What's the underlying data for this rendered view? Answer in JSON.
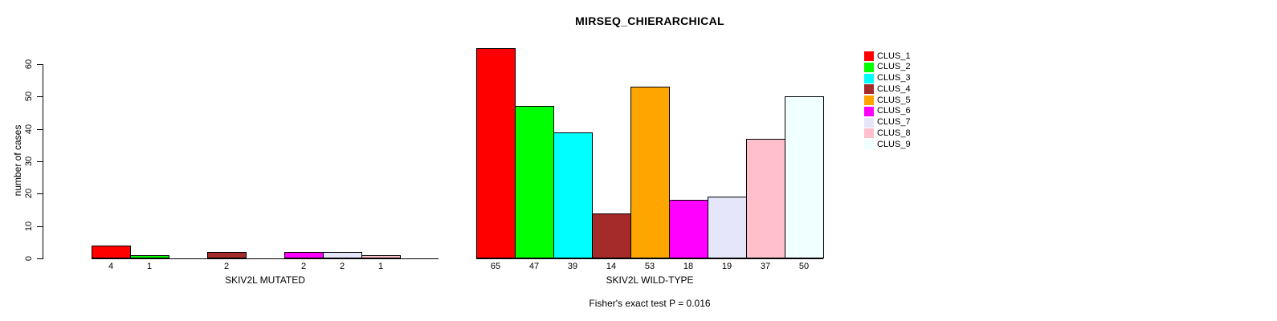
{
  "chart_data": {
    "type": "bar",
    "title": "MIRSEQ_CHIERARCHICAL",
    "ylabel": "number of cases",
    "xlabel": "",
    "ylim": [
      0,
      60
    ],
    "yticks": [
      0,
      10,
      20,
      30,
      40,
      50,
      60
    ],
    "grid": false,
    "legend_position": "right",
    "clusters": [
      {
        "name": "CLUS_1",
        "color": "#FF0000"
      },
      {
        "name": "CLUS_2",
        "color": "#00FF00"
      },
      {
        "name": "CLUS_3",
        "color": "#00FFFF"
      },
      {
        "name": "CLUS_4",
        "color": "#A52A2A"
      },
      {
        "name": "CLUS_5",
        "color": "#FFA500"
      },
      {
        "name": "CLUS_6",
        "color": "#FF00FF"
      },
      {
        "name": "CLUS_7",
        "color": "#E6E6FA"
      },
      {
        "name": "CLUS_8",
        "color": "#FFC0CB"
      },
      {
        "name": "CLUS_9",
        "color": "#F0FFFF"
      }
    ],
    "groups": [
      {
        "label": "SKIV2L MUTATED",
        "values": [
          4,
          1,
          0,
          2,
          0,
          2,
          2,
          1,
          0
        ]
      },
      {
        "label": "SKIV2L WILD-TYPE",
        "values": [
          65,
          47,
          39,
          14,
          53,
          18,
          19,
          37,
          50
        ]
      }
    ],
    "annotation": "Fisher's exact test P = 0.016",
    "colors": {
      "bar_border": "#000000",
      "axis": "#000000",
      "text": "#000000",
      "background": "#FFFFFF"
    }
  }
}
